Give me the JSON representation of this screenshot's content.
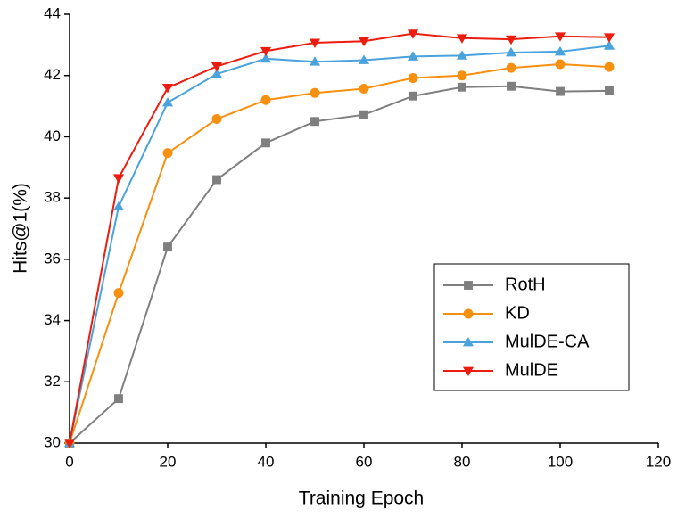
{
  "chart_data": {
    "type": "line",
    "x_label": "Training Epoch",
    "y_label": "Hits@1(%)",
    "x": [
      0,
      10,
      20,
      30,
      40,
      50,
      60,
      70,
      80,
      90,
      100,
      110
    ],
    "series": [
      {
        "name": "RotH",
        "color": "#7f7f7f",
        "marker": "square",
        "values": [
          30,
          31.45,
          36.4,
          38.6,
          39.8,
          40.5,
          40.72,
          41.33,
          41.62,
          41.65,
          41.48,
          41.5
        ]
      },
      {
        "name": "KD",
        "color": "#f7900f",
        "marker": "circle",
        "values": [
          30,
          34.9,
          39.47,
          40.58,
          41.2,
          41.43,
          41.57,
          41.92,
          42.0,
          42.25,
          42.37,
          42.28
        ]
      },
      {
        "name": "MulDE-CA",
        "color": "#4aa3dc",
        "marker": "triangle-up",
        "values": [
          30,
          37.72,
          41.12,
          42.05,
          42.55,
          42.45,
          42.5,
          42.62,
          42.65,
          42.75,
          42.78,
          42.97
        ]
      },
      {
        "name": "MulDE",
        "color": "#ec1c0e",
        "marker": "triangle-down",
        "values": [
          30,
          38.65,
          41.6,
          42.3,
          42.8,
          43.07,
          43.12,
          43.37,
          43.22,
          43.18,
          43.28,
          43.25
        ]
      }
    ],
    "xlim": [
      0,
      120
    ],
    "xticks": [
      0,
      20,
      40,
      60,
      80,
      100,
      120
    ],
    "ylim": [
      30,
      44
    ],
    "yticks": [
      30,
      32,
      34,
      36,
      38,
      40,
      42,
      44
    ],
    "legend": "lower right"
  }
}
